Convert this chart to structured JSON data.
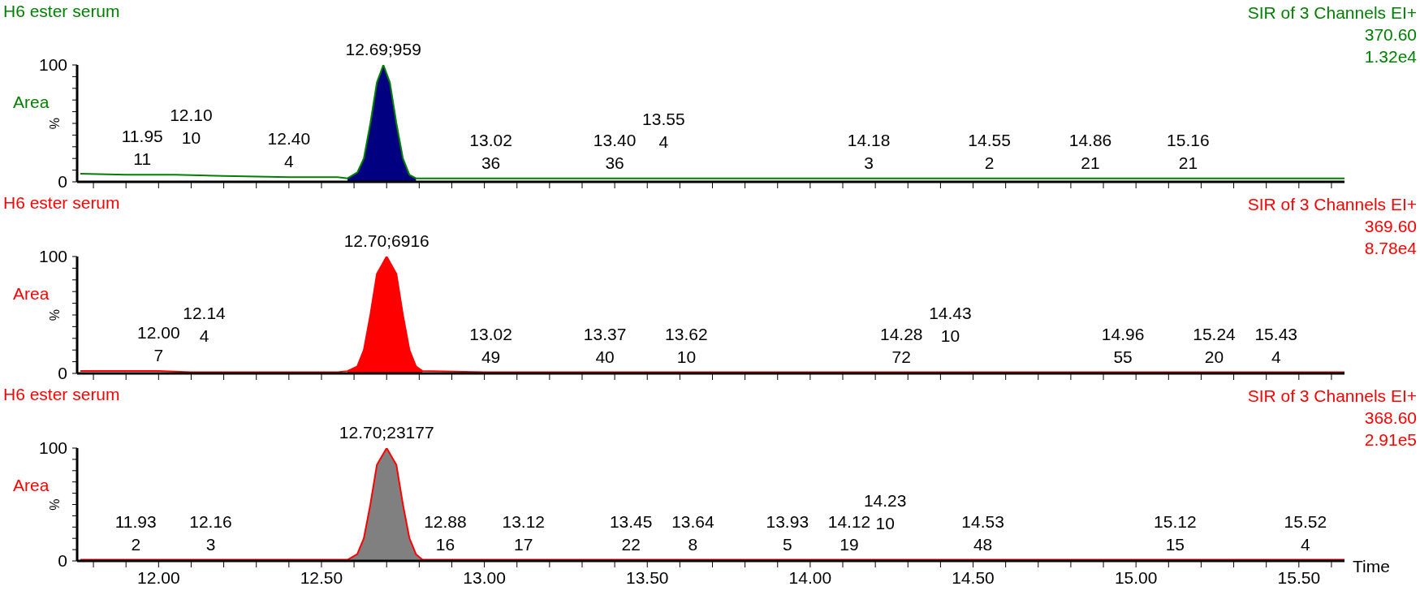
{
  "chart_data": [
    {
      "type": "line",
      "title": "H6 ester serum",
      "ylabel": "%",
      "legend": "left",
      "tick_labels": "y",
      "xlim": [
        11.75,
        15.64
      ],
      "ylim": [
        0,
        100
      ],
      "xticks": [
        {
          "value": 11.8,
          "label": null
        },
        {
          "value": 11.9,
          "label": null
        },
        {
          "value": 12,
          "label": null
        },
        {
          "value": 12.1,
          "label": null
        },
        {
          "value": 12.2,
          "label": null
        },
        {
          "value": 12.3,
          "label": null
        },
        {
          "value": 12.4,
          "label": null
        },
        {
          "value": 12.5,
          "label": null
        },
        {
          "value": 12.6,
          "label": null
        },
        {
          "value": 12.7,
          "label": null
        },
        {
          "value": 12.8,
          "label": null
        },
        {
          "value": 12.9,
          "label": null
        },
        {
          "value": 13,
          "label": null
        },
        {
          "value": 13.1,
          "label": null
        },
        {
          "value": 13.2,
          "label": null
        },
        {
          "value": 13.3,
          "label": null
        },
        {
          "value": 13.4,
          "label": null
        },
        {
          "value": 13.5,
          "label": null
        },
        {
          "value": 13.6,
          "label": null
        },
        {
          "value": 13.7,
          "label": null
        },
        {
          "value": 13.8,
          "label": null
        },
        {
          "value": 13.9,
          "label": null
        },
        {
          "value": 14,
          "label": null
        },
        {
          "value": 14.1,
          "label": null
        },
        {
          "value": 14.2,
          "label": null
        },
        {
          "value": 14.3,
          "label": null
        },
        {
          "value": 14.4,
          "label": null
        },
        {
          "value": 14.5,
          "label": null
        },
        {
          "value": 14.6,
          "label": null
        },
        {
          "value": 14.7,
          "label": null
        },
        {
          "value": 14.8,
          "label": null
        },
        {
          "value": 14.9,
          "label": null
        },
        {
          "value": 15,
          "label": null
        },
        {
          "value": 15.1,
          "label": null
        },
        {
          "value": 15.2,
          "label": null
        },
        {
          "value": 15.3,
          "label": null
        },
        {
          "value": 15.4,
          "label": null
        },
        {
          "value": 15.5,
          "label": null
        },
        {
          "value": 15.6,
          "label": null
        }
      ],
      "yticks": [
        {
          "value": 0,
          "label": "0"
        },
        {
          "value": 10,
          "label": null
        },
        {
          "value": 20,
          "label": null
        },
        {
          "value": 30,
          "label": null
        },
        {
          "value": 40,
          "label": null
        },
        {
          "value": 50,
          "label": null
        },
        {
          "value": 60,
          "label": null
        },
        {
          "value": 70,
          "label": null
        },
        {
          "value": 80,
          "label": null
        },
        {
          "value": 90,
          "label": null
        },
        {
          "value": 100,
          "label": "100"
        }
      ],
      "series": [
        {
          "name": "Area",
          "type": "line",
          "color": "#008000",
          "x": [
            11.76,
            11.9,
            12.05,
            12.2,
            12.4,
            12.55,
            12.58,
            12.61,
            12.63,
            12.65,
            12.67,
            12.69,
            12.71,
            12.73,
            12.75,
            12.77,
            12.79,
            13.0,
            13.5,
            14.0,
            14.5,
            15.0,
            15.64
          ],
          "values": [
            7,
            6,
            6,
            5,
            4,
            4,
            3,
            8,
            20,
            50,
            85,
            100,
            85,
            50,
            20,
            6,
            3,
            3,
            3,
            3,
            3,
            3,
            3
          ]
        },
        {
          "type": "area",
          "color": "#000080",
          "x": [
            12.58,
            12.61,
            12.63,
            12.65,
            12.67,
            12.69,
            12.71,
            12.73,
            12.75,
            12.77,
            12.79
          ],
          "values": [
            3,
            8,
            20,
            50,
            85,
            100,
            85,
            50,
            20,
            6,
            3
          ]
        }
      ],
      "annotations": [
        "SIR of 3 Channels EI+",
        "370.60",
        "1.32e4",
        {
          "text": "12.69;959",
          "x": 12.69,
          "y": 100
        },
        {
          "text": "11.95\n11",
          "x": 11.95,
          "y": 6
        },
        {
          "text": "12.10\n10",
          "x": 12.1,
          "y": 6
        },
        {
          "text": "12.40\n4",
          "x": 12.4,
          "y": 4
        },
        {
          "text": "13.02\n36",
          "x": 13.02,
          "y": 3
        },
        {
          "text": "13.40\n36",
          "x": 13.4,
          "y": 3
        },
        {
          "text": "13.55\n4",
          "x": 13.55,
          "y": 3
        },
        {
          "text": "14.18\n3",
          "x": 14.18,
          "y": 3
        },
        {
          "text": "14.55\n2",
          "x": 14.55,
          "y": 3
        },
        {
          "text": "14.86\n21",
          "x": 14.86,
          "y": 3
        },
        {
          "text": "15.16\n21",
          "x": 15.16,
          "y": 3
        }
      ]
    },
    {
      "type": "line",
      "title": "H6 ester serum",
      "ylabel": "%",
      "legend": "left",
      "tick_labels": "y",
      "xlim": [
        11.75,
        15.64
      ],
      "ylim": [
        0,
        100
      ],
      "xticks": [
        {
          "value": 11.8,
          "label": null
        },
        {
          "value": 11.9,
          "label": null
        },
        {
          "value": 12,
          "label": null
        },
        {
          "value": 12.1,
          "label": null
        },
        {
          "value": 12.2,
          "label": null
        },
        {
          "value": 12.3,
          "label": null
        },
        {
          "value": 12.4,
          "label": null
        },
        {
          "value": 12.5,
          "label": null
        },
        {
          "value": 12.6,
          "label": null
        },
        {
          "value": 12.7,
          "label": null
        },
        {
          "value": 12.8,
          "label": null
        },
        {
          "value": 12.9,
          "label": null
        },
        {
          "value": 13,
          "label": null
        },
        {
          "value": 13.1,
          "label": null
        },
        {
          "value": 13.2,
          "label": null
        },
        {
          "value": 13.3,
          "label": null
        },
        {
          "value": 13.4,
          "label": null
        },
        {
          "value": 13.5,
          "label": null
        },
        {
          "value": 13.6,
          "label": null
        },
        {
          "value": 13.7,
          "label": null
        },
        {
          "value": 13.8,
          "label": null
        },
        {
          "value": 13.9,
          "label": null
        },
        {
          "value": 14,
          "label": null
        },
        {
          "value": 14.1,
          "label": null
        },
        {
          "value": 14.2,
          "label": null
        },
        {
          "value": 14.3,
          "label": null
        },
        {
          "value": 14.4,
          "label": null
        },
        {
          "value": 14.5,
          "label": null
        },
        {
          "value": 14.6,
          "label": null
        },
        {
          "value": 14.7,
          "label": null
        },
        {
          "value": 14.8,
          "label": null
        },
        {
          "value": 14.9,
          "label": null
        },
        {
          "value": 15,
          "label": null
        },
        {
          "value": 15.1,
          "label": null
        },
        {
          "value": 15.2,
          "label": null
        },
        {
          "value": 15.3,
          "label": null
        },
        {
          "value": 15.4,
          "label": null
        },
        {
          "value": 15.5,
          "label": null
        },
        {
          "value": 15.6,
          "label": null
        }
      ],
      "yticks": [
        {
          "value": 0,
          "label": "0"
        },
        {
          "value": 10,
          "label": null
        },
        {
          "value": 20,
          "label": null
        },
        {
          "value": 30,
          "label": null
        },
        {
          "value": 40,
          "label": null
        },
        {
          "value": 50,
          "label": null
        },
        {
          "value": 60,
          "label": null
        },
        {
          "value": 70,
          "label": null
        },
        {
          "value": 80,
          "label": null
        },
        {
          "value": 90,
          "label": null
        },
        {
          "value": 100,
          "label": "100"
        }
      ],
      "series": [
        {
          "name": "Area",
          "type": "line",
          "color": "#ff0000",
          "x": [
            11.76,
            11.9,
            12.0,
            12.1,
            12.3,
            12.55,
            12.58,
            12.61,
            12.63,
            12.65,
            12.67,
            12.7,
            12.73,
            12.75,
            12.77,
            12.79,
            12.81,
            13.0,
            13.5,
            14.0,
            14.5,
            15.0,
            15.64
          ],
          "values": [
            2,
            2,
            2,
            1,
            1,
            1,
            2,
            6,
            20,
            50,
            85,
            100,
            85,
            50,
            20,
            6,
            2,
            1,
            1,
            1,
            1,
            1,
            1
          ]
        },
        {
          "type": "area",
          "color": "#ff0000",
          "x": [
            12.58,
            12.61,
            12.63,
            12.65,
            12.67,
            12.7,
            12.73,
            12.75,
            12.77,
            12.79,
            12.81
          ],
          "values": [
            2,
            6,
            20,
            50,
            85,
            100,
            85,
            50,
            20,
            6,
            2
          ]
        }
      ],
      "annotations": [
        "SIR of 3 Channels EI+",
        "369.60",
        "8.78e4",
        {
          "text": "12.70;6916",
          "x": 12.7,
          "y": 100
        },
        {
          "text": "12.00\n7",
          "x": 12.0,
          "y": 2
        },
        {
          "text": "12.14\n4",
          "x": 12.14,
          "y": 1
        },
        {
          "text": "13.02\n49",
          "x": 13.02,
          "y": 1
        },
        {
          "text": "13.37\n40",
          "x": 13.37,
          "y": 1
        },
        {
          "text": "13.62\n10",
          "x": 13.62,
          "y": 1
        },
        {
          "text": "14.28\n72",
          "x": 14.28,
          "y": 1
        },
        {
          "text": "14.43\n10",
          "x": 14.43,
          "y": 1
        },
        {
          "text": "14.96\n55",
          "x": 14.96,
          "y": 1
        },
        {
          "text": "15.24\n20",
          "x": 15.24,
          "y": 1
        },
        {
          "text": "15.43\n4",
          "x": 15.43,
          "y": 1
        }
      ]
    },
    {
      "type": "line",
      "title": "H6 ester serum",
      "ylabel": "%",
      "xlabel": "Time",
      "legend": "left",
      "xlim": [
        11.75,
        15.64
      ],
      "ylim": [
        0,
        100
      ],
      "xticks": [
        {
          "value": 11.8,
          "label": null
        },
        {
          "value": 11.9,
          "label": null
        },
        {
          "value": 12,
          "label": "12.00"
        },
        {
          "value": 12.1,
          "label": null
        },
        {
          "value": 12.2,
          "label": null
        },
        {
          "value": 12.3,
          "label": null
        },
        {
          "value": 12.4,
          "label": null
        },
        {
          "value": 12.5,
          "label": "12.50"
        },
        {
          "value": 12.6,
          "label": null
        },
        {
          "value": 12.7,
          "label": null
        },
        {
          "value": 12.8,
          "label": null
        },
        {
          "value": 12.9,
          "label": null
        },
        {
          "value": 13,
          "label": "13.00"
        },
        {
          "value": 13.1,
          "label": null
        },
        {
          "value": 13.2,
          "label": null
        },
        {
          "value": 13.3,
          "label": null
        },
        {
          "value": 13.4,
          "label": null
        },
        {
          "value": 13.5,
          "label": "13.50"
        },
        {
          "value": 13.6,
          "label": null
        },
        {
          "value": 13.7,
          "label": null
        },
        {
          "value": 13.8,
          "label": null
        },
        {
          "value": 13.9,
          "label": null
        },
        {
          "value": 14,
          "label": "14.00"
        },
        {
          "value": 14.1,
          "label": null
        },
        {
          "value": 14.2,
          "label": null
        },
        {
          "value": 14.3,
          "label": null
        },
        {
          "value": 14.4,
          "label": null
        },
        {
          "value": 14.5,
          "label": "14.50"
        },
        {
          "value": 14.6,
          "label": null
        },
        {
          "value": 14.7,
          "label": null
        },
        {
          "value": 14.8,
          "label": null
        },
        {
          "value": 14.9,
          "label": null
        },
        {
          "value": 15,
          "label": "15.00"
        },
        {
          "value": 15.1,
          "label": null
        },
        {
          "value": 15.2,
          "label": null
        },
        {
          "value": 15.3,
          "label": null
        },
        {
          "value": 15.4,
          "label": null
        },
        {
          "value": 15.5,
          "label": "15.50"
        },
        {
          "value": 15.6,
          "label": null
        }
      ],
      "yticks": [
        {
          "value": 0,
          "label": "0"
        },
        {
          "value": 10,
          "label": null
        },
        {
          "value": 20,
          "label": null
        },
        {
          "value": 30,
          "label": null
        },
        {
          "value": 40,
          "label": null
        },
        {
          "value": 50,
          "label": null
        },
        {
          "value": 60,
          "label": null
        },
        {
          "value": 70,
          "label": null
        },
        {
          "value": 80,
          "label": null
        },
        {
          "value": 90,
          "label": null
        },
        {
          "value": 100,
          "label": "100"
        }
      ],
      "series": [
        {
          "name": "Area",
          "type": "line",
          "color": "#ff0000",
          "x": [
            11.76,
            12.0,
            12.3,
            12.58,
            12.61,
            12.63,
            12.65,
            12.67,
            12.7,
            12.73,
            12.75,
            12.77,
            12.79,
            12.81,
            13.0,
            13.5,
            14.0,
            14.5,
            15.0,
            15.64
          ],
          "values": [
            1,
            1,
            1,
            1,
            6,
            20,
            50,
            85,
            100,
            85,
            50,
            20,
            6,
            1,
            1,
            1,
            1,
            1,
            1,
            1
          ]
        },
        {
          "type": "area",
          "color": "#808080",
          "x": [
            12.58,
            12.61,
            12.63,
            12.65,
            12.67,
            12.7,
            12.73,
            12.75,
            12.77,
            12.79,
            12.81
          ],
          "values": [
            1,
            6,
            20,
            50,
            85,
            100,
            85,
            50,
            20,
            6,
            1
          ]
        }
      ],
      "annotations": [
        "SIR of 3 Channels EI+",
        "368.60",
        "2.91e5",
        {
          "text": "12.70;23177",
          "x": 12.7,
          "y": 100
        },
        {
          "text": "11.93\n2",
          "x": 11.93,
          "y": 1
        },
        {
          "text": "12.16\n3",
          "x": 12.16,
          "y": 1
        },
        {
          "text": "12.88\n16",
          "x": 12.88,
          "y": 1
        },
        {
          "text": "13.12\n17",
          "x": 13.12,
          "y": 1
        },
        {
          "text": "13.45\n22",
          "x": 13.45,
          "y": 1
        },
        {
          "text": "13.64\n8",
          "x": 13.64,
          "y": 1
        },
        {
          "text": "13.93\n5",
          "x": 13.93,
          "y": 1
        },
        {
          "text": "14.12\n19",
          "x": 14.12,
          "y": 1
        },
        {
          "text": "14.23\n10",
          "x": 14.23,
          "y": 1
        },
        {
          "text": "14.53\n48",
          "x": 14.53,
          "y": 1
        },
        {
          "text": "15.12\n15",
          "x": 15.12,
          "y": 1
        },
        {
          "text": "15.52\n4",
          "x": 15.52,
          "y": 1
        }
      ]
    }
  ]
}
